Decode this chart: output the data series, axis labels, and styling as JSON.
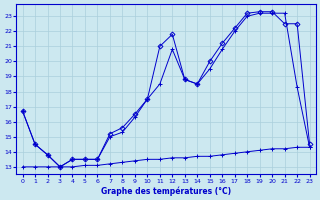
{
  "bg_color": "#cce8f0",
  "grid_color": "#aacfdc",
  "line_color": "#0000cc",
  "xlabel": "Graphe des températures (°C)",
  "xlim": [
    -0.5,
    23.5
  ],
  "ylim": [
    12.5,
    23.8
  ],
  "yticks": [
    13,
    14,
    15,
    16,
    17,
    18,
    19,
    20,
    21,
    22,
    23
  ],
  "xticks": [
    0,
    1,
    2,
    3,
    4,
    5,
    6,
    7,
    8,
    9,
    10,
    11,
    12,
    13,
    14,
    15,
    16,
    17,
    18,
    19,
    20,
    21,
    22,
    23
  ],
  "line_flat_x": [
    0,
    1,
    2,
    3,
    4,
    5,
    6,
    7,
    8,
    9,
    10,
    11,
    12,
    13,
    14,
    15,
    16,
    17,
    18,
    19,
    20,
    21,
    22,
    23
  ],
  "line_flat_y": [
    13.0,
    13.0,
    13.0,
    13.0,
    13.0,
    13.1,
    13.1,
    13.2,
    13.3,
    13.4,
    13.5,
    13.5,
    13.6,
    13.6,
    13.7,
    13.7,
    13.8,
    13.9,
    14.0,
    14.1,
    14.2,
    14.2,
    14.3,
    14.3
  ],
  "line_mid_x": [
    0,
    1,
    2,
    3,
    4,
    5,
    6,
    7,
    8,
    9,
    10,
    11,
    12,
    13,
    14,
    15,
    16,
    17,
    18,
    19,
    20,
    21,
    22,
    23
  ],
  "line_mid_y": [
    16.7,
    14.5,
    13.8,
    13.0,
    13.5,
    13.5,
    13.5,
    15.0,
    15.3,
    16.3,
    17.5,
    18.5,
    20.8,
    18.8,
    18.5,
    19.5,
    20.8,
    22.0,
    23.0,
    23.2,
    23.2,
    23.2,
    18.3,
    14.3
  ],
  "line_top_x": [
    0,
    1,
    2,
    3,
    4,
    5,
    6,
    7,
    8,
    9,
    10,
    11,
    12,
    13,
    14,
    15,
    16,
    17,
    18,
    19,
    20,
    21,
    22,
    23
  ],
  "line_top_y": [
    16.7,
    14.5,
    13.8,
    13.0,
    13.5,
    13.5,
    13.5,
    15.2,
    15.6,
    16.5,
    17.5,
    21.0,
    21.8,
    18.8,
    18.5,
    20.0,
    21.2,
    22.2,
    23.2,
    23.3,
    23.3,
    22.5,
    22.5,
    14.5
  ]
}
